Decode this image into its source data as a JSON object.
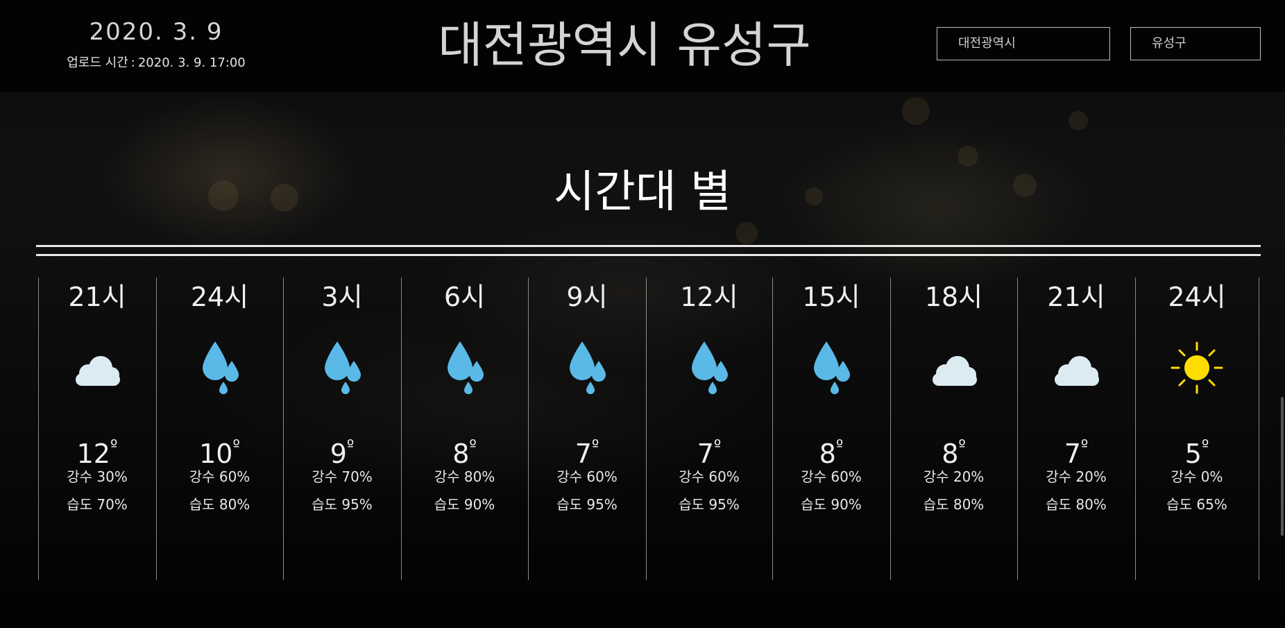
{
  "header": {
    "date": "2020. 3. 9",
    "upload_label": "업로드 시간",
    "upload_separator": ":",
    "upload_time": "2020. 3. 9. 17:00",
    "city_title": "대전광역시 유성구",
    "province_select": "대전광역시",
    "district_select": "유성구"
  },
  "section_title": "시간대 별",
  "forecast": [
    {
      "hour": "21시",
      "icon": "cloud-icon",
      "temp": "12",
      "rain": "강수 30%",
      "humidity": "습도 70%"
    },
    {
      "hour": "24시",
      "icon": "rain-icon",
      "temp": "10",
      "rain": "강수 60%",
      "humidity": "습도 80%"
    },
    {
      "hour": "3시",
      "icon": "rain-icon",
      "temp": "9",
      "rain": "강수 70%",
      "humidity": "습도 95%"
    },
    {
      "hour": "6시",
      "icon": "rain-icon",
      "temp": "8",
      "rain": "강수 80%",
      "humidity": "습도 90%"
    },
    {
      "hour": "9시",
      "icon": "rain-icon",
      "temp": "7",
      "rain": "강수 60%",
      "humidity": "습도 95%"
    },
    {
      "hour": "12시",
      "icon": "rain-icon",
      "temp": "7",
      "rain": "강수 60%",
      "humidity": "습도 95%"
    },
    {
      "hour": "15시",
      "icon": "rain-icon",
      "temp": "8",
      "rain": "강수 60%",
      "humidity": "습도 90%"
    },
    {
      "hour": "18시",
      "icon": "cloud-icon",
      "temp": "8",
      "rain": "강수 20%",
      "humidity": "습도 80%"
    },
    {
      "hour": "21시",
      "icon": "cloud-icon",
      "temp": "7",
      "rain": "강수 20%",
      "humidity": "습도 80%"
    },
    {
      "hour": "24시",
      "icon": "sun-icon",
      "temp": "5",
      "rain": "강수 0%",
      "humidity": "습도 65%"
    }
  ],
  "degree_symbol": "º",
  "colors": {
    "rain_drop": "#5ab9e6",
    "cloud": "#dcebf2",
    "sun": "#ffdd00"
  }
}
